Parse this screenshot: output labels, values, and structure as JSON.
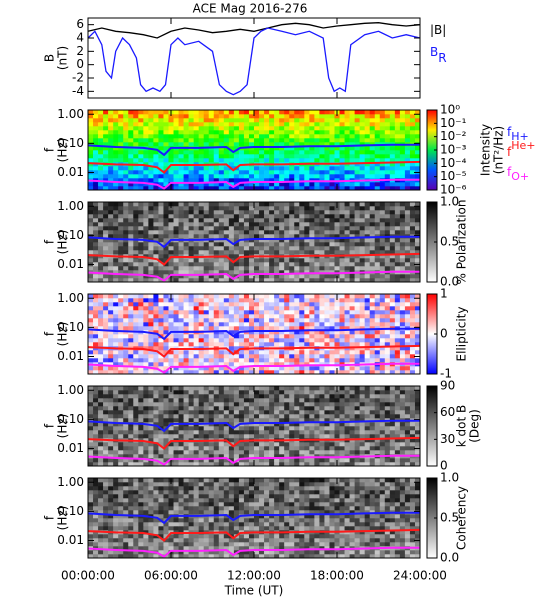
{
  "chart_data": [
    {
      "type": "line",
      "title": "ACE Mag 2016-276",
      "ylabel": [
        "B",
        "(nT)"
      ],
      "ylim": [
        -5,
        7
      ],
      "yticks": [
        -4,
        -2,
        0,
        2,
        4,
        6
      ],
      "legend": "right",
      "xlim": [
        0,
        24
      ],
      "xticks": [
        0,
        6,
        12,
        18,
        24
      ],
      "series": [
        {
          "name": "|B|",
          "color": "#000000",
          "x": [
            0,
            1,
            2,
            3,
            4,
            5,
            6,
            7,
            8,
            9,
            10,
            11,
            12,
            13,
            14,
            15,
            16,
            17,
            18,
            19,
            20,
            21,
            22,
            23,
            24
          ],
          "values": [
            5,
            5.5,
            5,
            4.8,
            4.5,
            4,
            5,
            5.5,
            5.2,
            4.8,
            5,
            5.3,
            5,
            5.5,
            6,
            6.2,
            6,
            5.5,
            5.8,
            6,
            6.2,
            6.3,
            6,
            5.8,
            6
          ]
        },
        {
          "name": "B",
          "sub": "R",
          "color": "#1a1aff",
          "x": [
            0,
            0.5,
            1,
            1.3,
            1.7,
            2,
            2.5,
            3,
            3.5,
            3.8,
            4.2,
            4.7,
            5.2,
            5.6,
            6,
            6.5,
            7,
            8,
            9,
            9.5,
            10,
            10.5,
            11,
            11.5,
            12,
            12.5,
            13,
            14,
            15,
            16,
            17,
            17.4,
            17.8,
            18.2,
            18.6,
            19,
            20,
            21,
            22,
            23,
            24
          ],
          "values": [
            4,
            5,
            3,
            -1,
            -2,
            2,
            4,
            3,
            1,
            -3,
            -4,
            -3.5,
            -4,
            -3,
            3,
            4,
            3,
            3.5,
            2,
            -3,
            -4,
            -4.5,
            -4,
            -3,
            4,
            5,
            5.5,
            5,
            4.5,
            5,
            4,
            -2,
            -4,
            -3.5,
            -4,
            3,
            4.5,
            5,
            4,
            4.5,
            4
          ]
        }
      ]
    },
    {
      "type": "spectrogram",
      "ylabel": [
        "f",
        "(Hz)"
      ],
      "ylim": [
        0.0025,
        1.4
      ],
      "log_y": true,
      "legend": true,
      "xlim": [
        0,
        24
      ],
      "xticks": [
        0,
        6,
        12,
        18,
        24
      ],
      "yticks": [
        {
          "value": 1,
          "label": "1.00"
        },
        {
          "value": 0.1,
          "label": "0.10"
        },
        {
          "value": 0.01,
          "label": "0.01"
        }
      ],
      "colorbar": {
        "label": [
          "Intensity",
          "(nT²/Hz)"
        ],
        "colormap": "rainbow",
        "log": true,
        "lim": [
          1e-06,
          1
        ],
        "ticks": [
          {
            "value": 1,
            "label": "10⁰"
          },
          {
            "value": 0.1,
            "label": "10⁻¹"
          },
          {
            "value": 0.01,
            "label": "10⁻²"
          },
          {
            "value": 0.001,
            "label": "10⁻³"
          },
          {
            "value": 0.0001,
            "label": "10⁻⁴"
          },
          {
            "value": 1e-05,
            "label": "10⁻⁵"
          },
          {
            "value": 1e-06,
            "label": "10⁻⁶"
          }
        ]
      }
    },
    {
      "type": "spectrogram",
      "ylabel": [
        "f",
        "(Hz)"
      ],
      "ylim": [
        0.0025,
        1.4
      ],
      "log_y": true,
      "xlim": [
        0,
        24
      ],
      "xticks": [
        0,
        6,
        12,
        18,
        24
      ],
      "yticks": [
        {
          "value": 1,
          "label": "1.00"
        },
        {
          "value": 0.1,
          "label": "0.10"
        },
        {
          "value": 0.01,
          "label": "0.01"
        }
      ],
      "colorbar": {
        "label": [
          "% Polarization"
        ],
        "colormap": "gray_r",
        "lim": [
          0,
          1
        ],
        "ticks": [
          {
            "value": 0,
            "label": "0.0"
          },
          {
            "value": 0.5,
            "label": "0.5"
          },
          {
            "value": 1,
            "label": "1.0"
          }
        ]
      }
    },
    {
      "type": "spectrogram",
      "ylabel": [
        "f",
        "(Hz)"
      ],
      "ylim": [
        0.0025,
        1.4
      ],
      "log_y": true,
      "xlim": [
        0,
        24
      ],
      "xticks": [
        0,
        6,
        12,
        18,
        24
      ],
      "yticks": [
        {
          "value": 1,
          "label": "1.00"
        },
        {
          "value": 0.1,
          "label": "0.10"
        },
        {
          "value": 0.01,
          "label": "0.01"
        }
      ],
      "colorbar": {
        "label": [
          "Ellipticity"
        ],
        "colormap": "bwr",
        "lim": [
          -1,
          1
        ],
        "ticks": [
          -1,
          0,
          1
        ]
      }
    },
    {
      "type": "spectrogram",
      "ylabel": [
        "f",
        "(Hz)"
      ],
      "ylim": [
        0.0025,
        1.4
      ],
      "log_y": true,
      "xlim": [
        0,
        24
      ],
      "xticks": [
        0,
        6,
        12,
        18,
        24
      ],
      "yticks": [
        {
          "value": 1,
          "label": "1.00"
        },
        {
          "value": 0.1,
          "label": "0.10"
        },
        {
          "value": 0.01,
          "label": "0.01"
        }
      ],
      "colorbar": {
        "label": [
          "k dot B",
          "(Deg)"
        ],
        "colormap": "gray_r",
        "lim": [
          0,
          90
        ],
        "ticks": [
          0,
          30,
          60,
          90
        ]
      }
    },
    {
      "type": "spectrogram",
      "ylabel": [
        "f",
        "(Hz)"
      ],
      "ylim": [
        0.0025,
        1.4
      ],
      "log_y": true,
      "xlim": [
        0,
        24
      ],
      "xlabel": "Time (UT)",
      "xticks": [
        {
          "value": 0,
          "label": "00:00:00"
        },
        {
          "value": 6,
          "label": "06:00:00"
        },
        {
          "value": 12,
          "label": "12:00:00"
        },
        {
          "value": 18,
          "label": "18:00:00"
        },
        {
          "value": 24,
          "label": "24:00:00"
        }
      ],
      "yticks": [
        {
          "value": 1,
          "label": "1.00"
        },
        {
          "value": 0.1,
          "label": "0.10"
        },
        {
          "value": 0.01,
          "label": "0.01"
        }
      ],
      "colorbar": {
        "label": [
          "Coherency"
        ],
        "colormap": "gray_r",
        "lim": [
          0,
          1
        ],
        "ticks": [
          {
            "value": 0,
            "label": "0.0"
          },
          {
            "value": 0.5,
            "label": "0.5"
          },
          {
            "value": 1,
            "label": "1.0"
          }
        ]
      }
    }
  ],
  "gyrofrequencies": {
    "x": [
      0,
      2,
      4,
      5,
      5.5,
      6,
      8,
      10,
      10.5,
      11,
      12,
      14,
      16,
      18,
      20,
      22,
      24
    ],
    "series": [
      {
        "name": "f",
        "sub": "H+",
        "color": "#1a1aff",
        "values": [
          0.085,
          0.075,
          0.07,
          0.06,
          0.04,
          0.07,
          0.07,
          0.075,
          0.05,
          0.07,
          0.075,
          0.075,
          0.08,
          0.08,
          0.085,
          0.09,
          0.09
        ]
      },
      {
        "name": "f",
        "sup": "He+",
        "color": "#ff1a1a",
        "values": [
          0.021,
          0.019,
          0.018,
          0.015,
          0.01,
          0.018,
          0.018,
          0.019,
          0.012,
          0.018,
          0.019,
          0.019,
          0.02,
          0.02,
          0.021,
          0.022,
          0.023
        ]
      },
      {
        "name": "f",
        "sub": "O+",
        "color": "#ff20ff",
        "values": [
          0.0053,
          0.0047,
          0.0044,
          0.0038,
          0.0028,
          0.0044,
          0.0044,
          0.0047,
          0.0032,
          0.0044,
          0.0047,
          0.0047,
          0.005,
          0.005,
          0.0053,
          0.0056,
          0.0056
        ]
      }
    ]
  }
}
